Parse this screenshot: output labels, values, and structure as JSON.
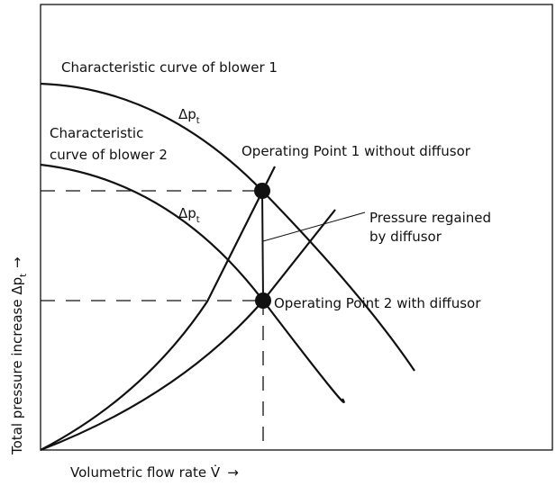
{
  "curves": {
    "blower1": {
      "label": "Characteristic curve of blower 1",
      "delta": {
        "symbol": "Δp",
        "subscript": "t"
      }
    },
    "blower2": {
      "label_lines": [
        "Characteristic",
        "curve of blower 2"
      ],
      "delta": {
        "symbol": "Δp",
        "subscript": "t"
      }
    }
  },
  "points": {
    "op1": {
      "label": "Operating Point 1 without diffusor"
    },
    "op2": {
      "label": "Operating Point 2 with diffusor"
    }
  },
  "annotation": {
    "lines": [
      "Pressure regained",
      "by diffusor"
    ]
  },
  "axes": {
    "y": {
      "label": "Total pressure increase Δp",
      "subscript": "t",
      "arrow": "→"
    },
    "x": {
      "label": "Volumetric flow rate V̇",
      "arrow": "→"
    }
  }
}
